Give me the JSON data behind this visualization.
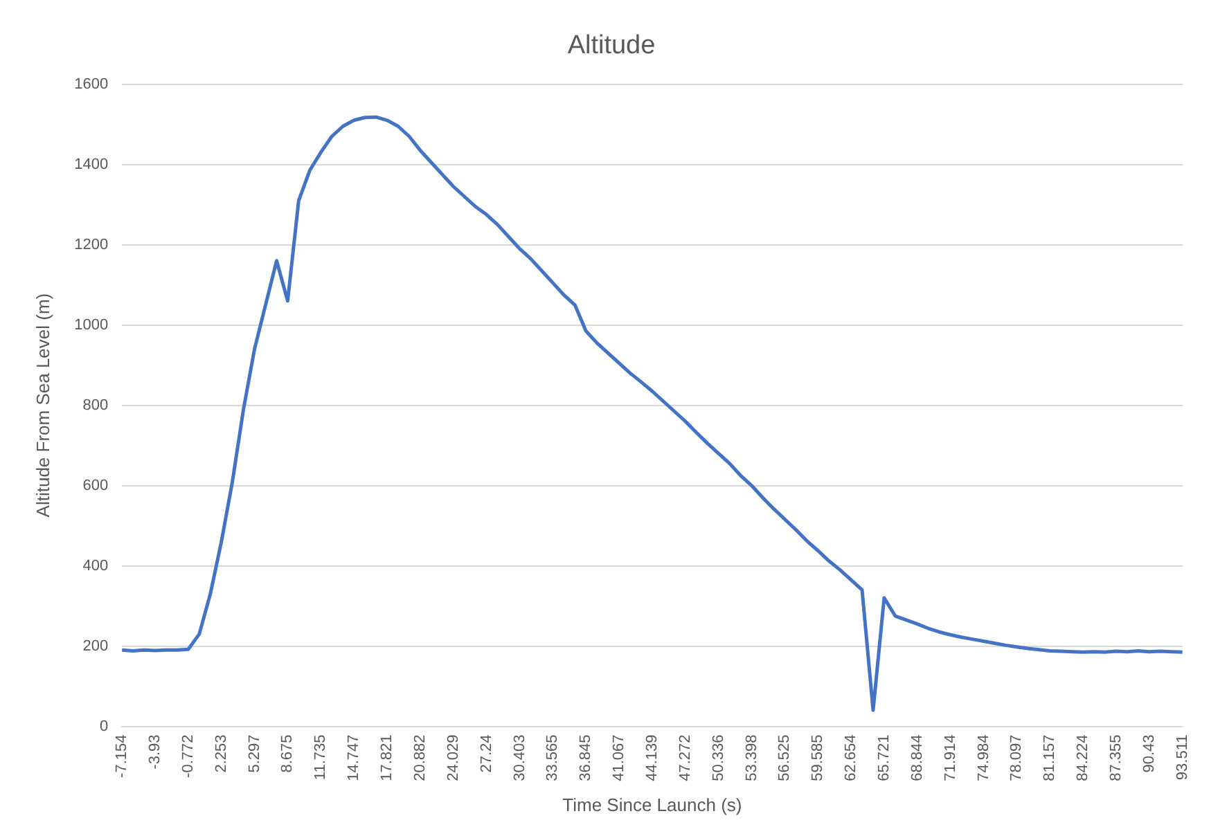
{
  "chart_data": {
    "type": "line",
    "title": "Altitude",
    "xlabel": "Time Since Launch (s)",
    "ylabel": "Altitude From Sea Level (m)",
    "categories": [
      "-7.154",
      null,
      null,
      "-3.93",
      null,
      null,
      "-0.772",
      null,
      null,
      "2.253",
      null,
      null,
      "5.297",
      null,
      null,
      "8.675",
      null,
      null,
      "11.735",
      null,
      null,
      "14.747",
      null,
      null,
      "17.821",
      null,
      null,
      "20.882",
      null,
      null,
      "24.029",
      null,
      null,
      "27.24",
      null,
      null,
      "30.403",
      null,
      null,
      "33.565",
      null,
      null,
      "36.845",
      null,
      null,
      "41.067",
      null,
      null,
      "44.139",
      null,
      null,
      "47.272",
      null,
      null,
      "50.336",
      null,
      null,
      "53.398",
      null,
      null,
      "56.525",
      null,
      null,
      "59.585",
      null,
      null,
      "62.654",
      null,
      null,
      "65.721",
      null,
      null,
      "68.844",
      null,
      null,
      "71.914",
      null,
      null,
      "74.984",
      null,
      null,
      "78.097",
      null,
      null,
      "81.157",
      null,
      null,
      "84.224",
      null,
      null,
      "87.355",
      null,
      null,
      "90.43",
      null,
      null,
      "93.511"
    ],
    "series": [
      {
        "color": "#4472c4",
        "values": [
          190,
          188,
          190,
          189,
          190,
          190,
          192,
          230,
          330,
          460,
          610,
          790,
          940,
          1050,
          1160,
          1060,
          1310,
          1385,
          1430,
          1470,
          1495,
          1510,
          1517,
          1518,
          1510,
          1495,
          1470,
          1435,
          1405,
          1375,
          1345,
          1320,
          1295,
          1275,
          1250,
          1220,
          1190,
          1165,
          1135,
          1105,
          1075,
          1050,
          985,
          955,
          930,
          905,
          880,
          858,
          835,
          810,
          785,
          760,
          732,
          705,
          680,
          655,
          625,
          600,
          570,
          542,
          516,
          490,
          462,
          438,
          412,
          390,
          365,
          340,
          40,
          320,
          275,
          265,
          255,
          244,
          235,
          228,
          222,
          217,
          212,
          207,
          202,
          198,
          194,
          191,
          188,
          187,
          186,
          185,
          186,
          185,
          187,
          186,
          188,
          186,
          187,
          186,
          185
        ]
      }
    ],
    "ylim": [
      0,
      1600
    ],
    "yticks": [
      0,
      200,
      400,
      600,
      800,
      1000,
      1200,
      1400,
      1600
    ],
    "grid": "y",
    "legend": false,
    "marker": "none",
    "line_style": "solid"
  }
}
